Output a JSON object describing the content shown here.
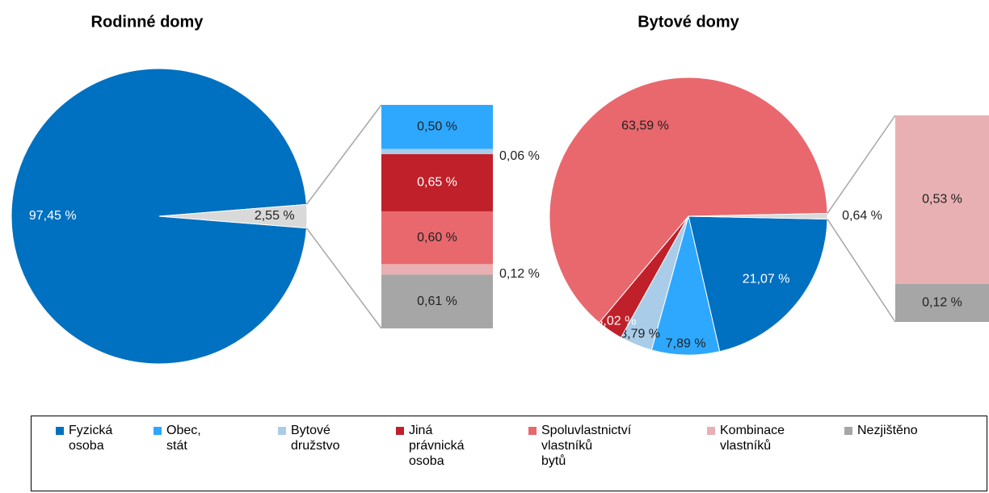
{
  "chart_data": [
    {
      "type": "pie",
      "title": "Rodinné domy",
      "values": [
        97.45,
        2.55
      ],
      "value_labels": [
        "97,45 %",
        "2,55 %"
      ],
      "colors": [
        "#0070c0",
        "#d9d9d9"
      ],
      "bar": {
        "values": [
          0.5,
          0.06,
          0.65,
          0.6,
          0.12,
          0.61
        ],
        "value_labels": [
          "0,50 %",
          "0,06 %",
          "0,65 %",
          "0,60 %",
          "0,12 %",
          "0,61 %"
        ],
        "colors": [
          "#2ea8ff",
          "#a9cde8",
          "#c0202a",
          "#e8686e",
          "#e8b0b3",
          "#a6a6a6"
        ]
      }
    },
    {
      "type": "pie",
      "title": "Bytové domy",
      "values": [
        21.07,
        7.89,
        3.79,
        3.02,
        63.59,
        0.64
      ],
      "value_labels": [
        "21,07 %",
        "7,89 %",
        "3,79 %",
        "3,02 %",
        "63,59 %",
        "0,64 %"
      ],
      "colors": [
        "#0070c0",
        "#2ea8ff",
        "#a9cde8",
        "#c0202a",
        "#e8686e",
        "#d9d9d9"
      ],
      "bar": {
        "values": [
          0.53,
          0.12
        ],
        "value_labels": [
          "0,53 %",
          "0,12 %"
        ],
        "colors": [
          "#e8b0b3",
          "#a6a6a6"
        ]
      }
    }
  ],
  "legend": {
    "position": "bottom",
    "labels": [
      "Fyzická osoba",
      "Obec, stát",
      "Bytové družstvo",
      "Jiná právnická osoba",
      "Spoluvlastnictví vlastníků bytů",
      "Kombinace vlastníků",
      "Nezjištěno"
    ],
    "colors": [
      "#0070c0",
      "#2ea8ff",
      "#a9cde8",
      "#c0202a",
      "#e8686e",
      "#e8b0b3",
      "#a6a6a6"
    ]
  }
}
